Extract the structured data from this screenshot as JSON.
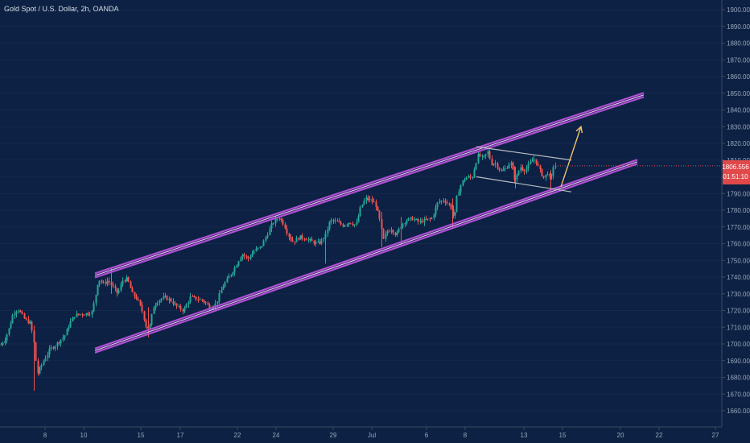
{
  "header": {
    "symbol_title": "Gold Spot / U.S. Dollar, 2h, OANDA"
  },
  "colors": {
    "background": "#0c2143",
    "candle_up": "#26a69a",
    "candle_down": "#ef5350",
    "channel": "#b14fd4",
    "channel_inner": "#f2b8ff",
    "flag_lines": "#b8bcc4",
    "arrow": "#f5c26b",
    "price_tag_bg": "#e0484a",
    "axis_text": "#9aa6bb"
  },
  "chart_data": {
    "type": "candlestick",
    "title": "Gold Spot / U.S. Dollar, 2h, OANDA",
    "y_axis": {
      "position": "right",
      "range": [
        1655,
        1905
      ],
      "ticks": [
        1900,
        1890,
        1880,
        1870,
        1860,
        1850,
        1840,
        1830,
        1820,
        1810,
        1800,
        1790,
        1780,
        1770,
        1760,
        1750,
        1740,
        1730,
        1720,
        1710,
        1700,
        1690,
        1680,
        1670,
        1660
      ],
      "tick_labels": [
        "1900.000",
        "1890.000",
        "1880.000",
        "1870.000",
        "1860.000",
        "1850.000",
        "1840.000",
        "1830.000",
        "1820.000",
        "1810.000",
        "1800.000",
        "1790.000",
        "1780.000",
        "1770.000",
        "1760.000",
        "1750.000",
        "1740.000",
        "1730.000",
        "1720.000",
        "1710.000",
        "1700.000",
        "1690.000",
        "1680.000",
        "1670.000",
        "1660.000"
      ]
    },
    "x_axis": {
      "tick_labels": [
        "8",
        "10",
        "15",
        "17",
        "22",
        "24",
        "29",
        "Jul",
        "6",
        "8",
        "13",
        "15",
        "20",
        "22",
        "27"
      ]
    },
    "last_price": {
      "value_label": "1806.556",
      "countdown": "01:51:10",
      "value": 1806.556
    },
    "price_path": [
      [
        0,
        1699
      ],
      [
        5,
        1702
      ],
      [
        10,
        1708
      ],
      [
        16,
        1718
      ],
      [
        22,
        1721
      ],
      [
        30,
        1715
      ],
      [
        38,
        1712
      ],
      [
        42,
        1700
      ],
      [
        46,
        1682
      ],
      [
        50,
        1686
      ],
      [
        56,
        1692
      ],
      [
        62,
        1697
      ],
      [
        68,
        1699
      ],
      [
        74,
        1702
      ],
      [
        80,
        1705
      ],
      [
        86,
        1712
      ],
      [
        92,
        1717
      ],
      [
        100,
        1718
      ],
      [
        106,
        1718
      ],
      [
        114,
        1719
      ],
      [
        118,
        1728
      ],
      [
        122,
        1739
      ],
      [
        128,
        1736
      ],
      [
        134,
        1738
      ],
      [
        140,
        1734
      ],
      [
        146,
        1730
      ],
      [
        152,
        1738
      ],
      [
        158,
        1739
      ],
      [
        164,
        1730
      ],
      [
        170,
        1727
      ],
      [
        176,
        1720
      ],
      [
        182,
        1709
      ],
      [
        186,
        1711
      ],
      [
        190,
        1722
      ],
      [
        196,
        1726
      ],
      [
        204,
        1728
      ],
      [
        212,
        1726
      ],
      [
        220,
        1722
      ],
      [
        228,
        1720
      ],
      [
        236,
        1728
      ],
      [
        244,
        1727
      ],
      [
        252,
        1726
      ],
      [
        260,
        1722
      ],
      [
        268,
        1724
      ],
      [
        276,
        1734
      ],
      [
        284,
        1740
      ],
      [
        292,
        1746
      ],
      [
        300,
        1754
      ],
      [
        308,
        1751
      ],
      [
        316,
        1756
      ],
      [
        324,
        1758
      ],
      [
        332,
        1766
      ],
      [
        338,
        1772
      ],
      [
        346,
        1776
      ],
      [
        352,
        1772
      ],
      [
        358,
        1765
      ],
      [
        364,
        1761
      ],
      [
        372,
        1764
      ],
      [
        380,
        1763
      ],
      [
        388,
        1761
      ],
      [
        396,
        1760
      ],
      [
        404,
        1765
      ],
      [
        410,
        1774
      ],
      [
        418,
        1773
      ],
      [
        426,
        1771
      ],
      [
        434,
        1773
      ],
      [
        442,
        1771
      ],
      [
        448,
        1782
      ],
      [
        454,
        1787
      ],
      [
        460,
        1786
      ],
      [
        466,
        1784
      ],
      [
        472,
        1773
      ],
      [
        476,
        1762
      ],
      [
        480,
        1767
      ],
      [
        486,
        1769
      ],
      [
        492,
        1765
      ],
      [
        498,
        1771
      ],
      [
        504,
        1774
      ],
      [
        512,
        1775
      ],
      [
        520,
        1773
      ],
      [
        528,
        1774
      ],
      [
        536,
        1775
      ],
      [
        544,
        1785
      ],
      [
        552,
        1786
      ],
      [
        560,
        1782
      ],
      [
        564,
        1774
      ],
      [
        568,
        1790
      ],
      [
        574,
        1797
      ],
      [
        580,
        1800
      ],
      [
        586,
        1799
      ],
      [
        590,
        1807
      ],
      [
        594,
        1813
      ],
      [
        600,
        1811
      ],
      [
        606,
        1815
      ],
      [
        610,
        1808
      ],
      [
        616,
        1808
      ],
      [
        622,
        1803
      ],
      [
        628,
        1805
      ],
      [
        634,
        1809
      ],
      [
        640,
        1798
      ],
      [
        646,
        1806
      ],
      [
        652,
        1804
      ],
      [
        658,
        1808
      ],
      [
        664,
        1811
      ],
      [
        670,
        1804
      ],
      [
        676,
        1799
      ],
      [
        680,
        1803
      ],
      [
        684,
        1797
      ],
      [
        688,
        1808
      ],
      [
        690,
        1806.5
      ]
    ]
  },
  "drawings": [
    {
      "name": "channel-upper",
      "from": [
        118,
        1741
      ],
      "to": [
        800,
        1849
      ]
    },
    {
      "name": "channel-lower",
      "from": [
        118,
        1696
      ],
      "to": [
        792,
        1809
      ]
    },
    {
      "name": "flag-upper",
      "from": [
        592,
        1818
      ],
      "to": [
        710,
        1810
      ]
    },
    {
      "name": "flag-lower",
      "from": [
        592,
        1800
      ],
      "to": [
        710,
        1791
      ]
    },
    {
      "name": "arrow-up",
      "from": [
        697,
        1794
      ],
      "to": [
        722,
        1830
      ]
    }
  ],
  "x_tick_positions": [
    56,
    104,
    175,
    224,
    295,
    343,
    414,
    462,
    530,
    578,
    651,
    699,
    771,
    819,
    889
  ]
}
